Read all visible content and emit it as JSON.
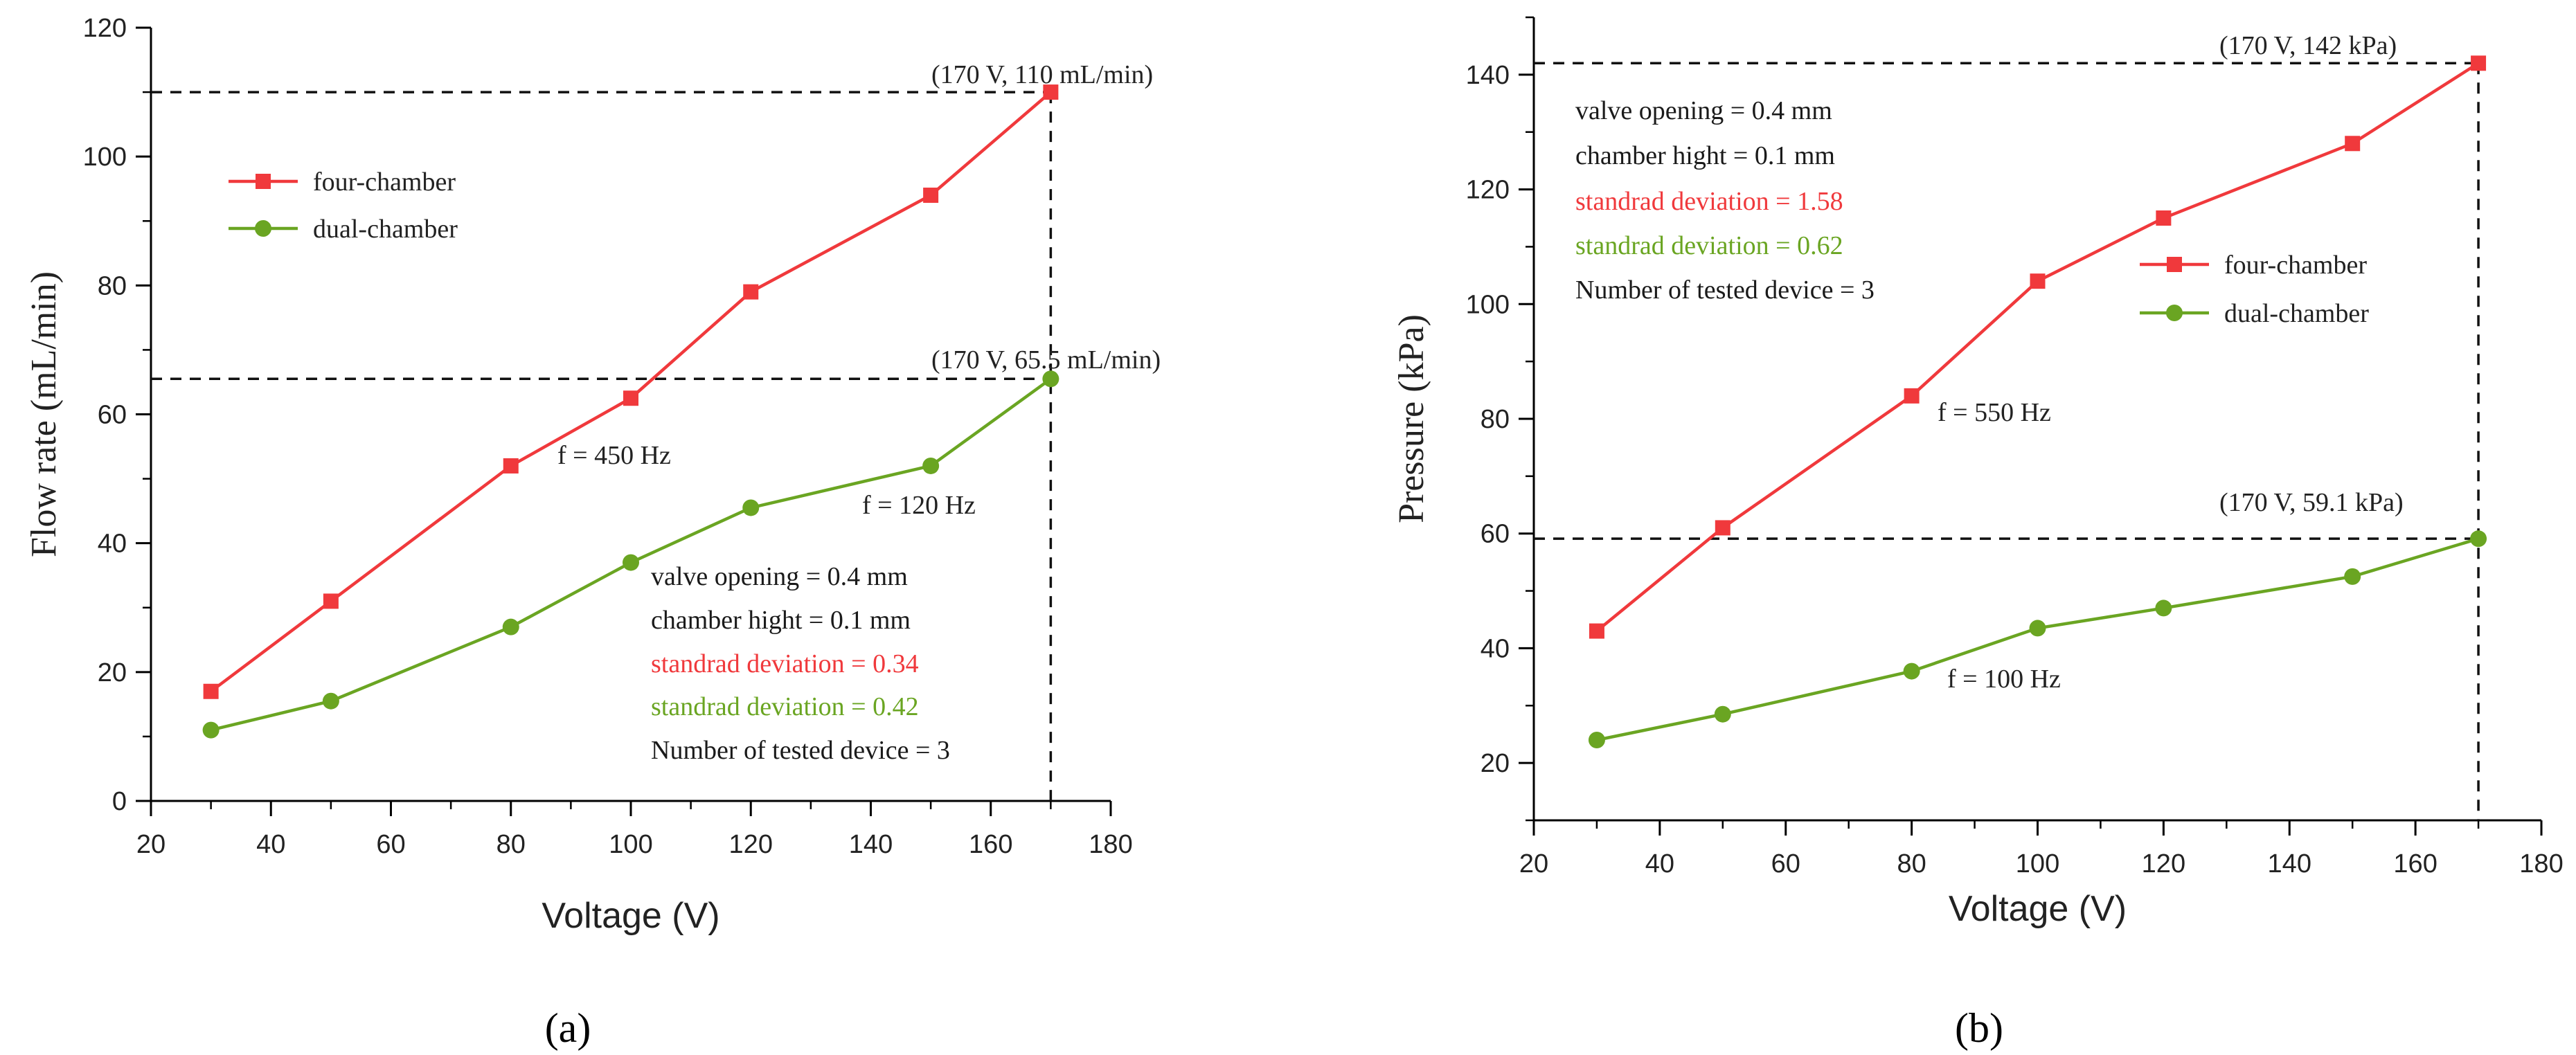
{
  "colors": {
    "four": "#f0393c",
    "dual": "#6aa522",
    "axis": "#000000",
    "text": "#1a1a1a"
  },
  "chart_data": [
    {
      "type": "line",
      "panel_label": "(a)",
      "xlabel": "Voltage (V)",
      "ylabel": "Flow rate (mL/min)",
      "xlim": [
        20,
        180
      ],
      "ylim": [
        0,
        120
      ],
      "xticks": [
        "20",
        "40",
        "60",
        "80",
        "100",
        "120",
        "140",
        "160",
        "180"
      ],
      "yticks": [
        "0",
        "20",
        "40",
        "60",
        "80",
        "100",
        "120"
      ],
      "x": [
        30,
        50,
        80,
        100,
        120,
        150,
        170
      ],
      "series": [
        {
          "name": "four-chamber",
          "key": "four",
          "marker": "square",
          "values": [
            17,
            31,
            52,
            62.5,
            79,
            94,
            110
          ]
        },
        {
          "name": "dual-chamber",
          "key": "dual",
          "marker": "circle",
          "values": [
            11,
            15.5,
            27,
            37,
            45.5,
            52,
            65.5
          ]
        }
      ],
      "legend_position": "upper-left",
      "annotations": {
        "peak_four": "(170 V, 110 mL/min)",
        "peak_dual": "(170 V, 65.5 mL/min)",
        "freq_four": "f = 450 Hz",
        "freq_dual": "f = 120 Hz"
      },
      "notes": [
        {
          "text": "valve opening = 0.4 mm",
          "color": "text"
        },
        {
          "text": "chamber hight = 0.1 mm",
          "color": "text"
        },
        {
          "text": "standrad deviation = 0.34",
          "color": "four"
        },
        {
          "text": "standrad deviation = 0.42",
          "color": "dual"
        },
        {
          "text": "Number of tested device = 3",
          "color": "text"
        }
      ]
    },
    {
      "type": "line",
      "panel_label": "(b)",
      "xlabel": "Voltage (V)",
      "ylabel": "Pressure (kPa)",
      "xlim": [
        20,
        180
      ],
      "ylim": [
        10,
        150
      ],
      "xticks": [
        "20",
        "40",
        "60",
        "80",
        "100",
        "120",
        "140",
        "160",
        "180"
      ],
      "yticks": [
        "20",
        "40",
        "60",
        "80",
        "100",
        "120",
        "140"
      ],
      "x": [
        30,
        50,
        80,
        100,
        120,
        150,
        170
      ],
      "series": [
        {
          "name": "four-chamber",
          "key": "four",
          "marker": "square",
          "values": [
            43,
            61,
            84,
            104,
            115,
            128,
            142
          ]
        },
        {
          "name": "dual-chamber",
          "key": "dual",
          "marker": "circle",
          "values": [
            24,
            28.5,
            36,
            43.5,
            47,
            52.5,
            59.1
          ]
        }
      ],
      "legend_position": "center-right",
      "annotations": {
        "peak_four": "(170 V, 142 kPa)",
        "peak_dual": "(170 V, 59.1 kPa)",
        "freq_four": "f = 550 Hz",
        "freq_dual": "f = 100 Hz"
      },
      "notes": [
        {
          "text": "valve opening = 0.4 mm",
          "color": "text"
        },
        {
          "text": "chamber hight = 0.1 mm",
          "color": "text"
        },
        {
          "text": "standrad deviation = 1.58",
          "color": "four"
        },
        {
          "text": "standrad deviation = 0.62",
          "color": "dual"
        },
        {
          "text": "Number of tested device = 3",
          "color": "text"
        }
      ]
    }
  ]
}
